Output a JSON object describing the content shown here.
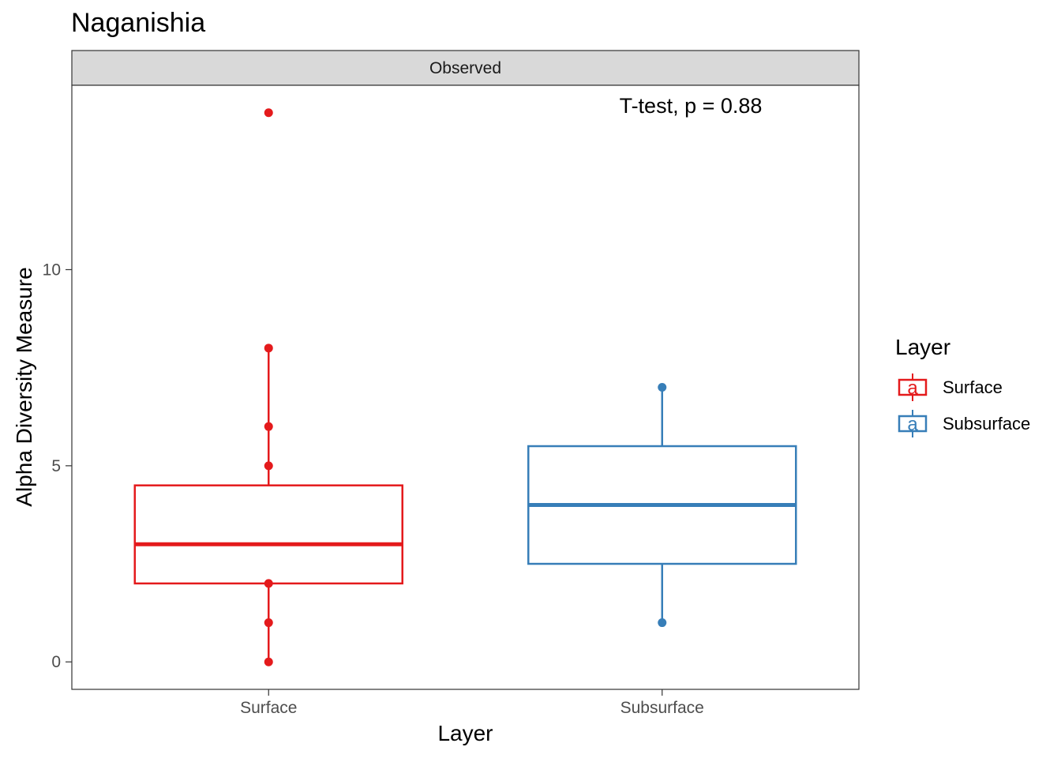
{
  "chart_data": {
    "type": "boxplot",
    "title": "Naganishia",
    "facet_label": "Observed",
    "xlabel": "Layer",
    "ylabel": "Alpha Diversity Measure",
    "annotation": "T-test, p = 0.88",
    "ylim": [
      -0.7,
      14.7
    ],
    "yticks": [
      0,
      5,
      10
    ],
    "categories": [
      "Surface",
      "Subsurface"
    ],
    "legend": {
      "title": "Layer",
      "position": "right",
      "entries": [
        {
          "label": "Surface",
          "glyph": "a",
          "color": "#E41A1C"
        },
        {
          "label": "Subsurface",
          "glyph": "a",
          "color": "#377EB8"
        }
      ]
    },
    "series": [
      {
        "category": "Surface",
        "color": "#E41A1C",
        "q1": 2,
        "median": 3,
        "q3": 4.5,
        "whisker_low": 0,
        "whisker_high": 8,
        "points": [
          0,
          1,
          2,
          5,
          6,
          8,
          14
        ]
      },
      {
        "category": "Subsurface",
        "color": "#377EB8",
        "q1": 2.5,
        "median": 4,
        "q3": 5.5,
        "whisker_low": 1,
        "whisker_high": 7,
        "points": [
          1,
          7
        ]
      }
    ]
  }
}
